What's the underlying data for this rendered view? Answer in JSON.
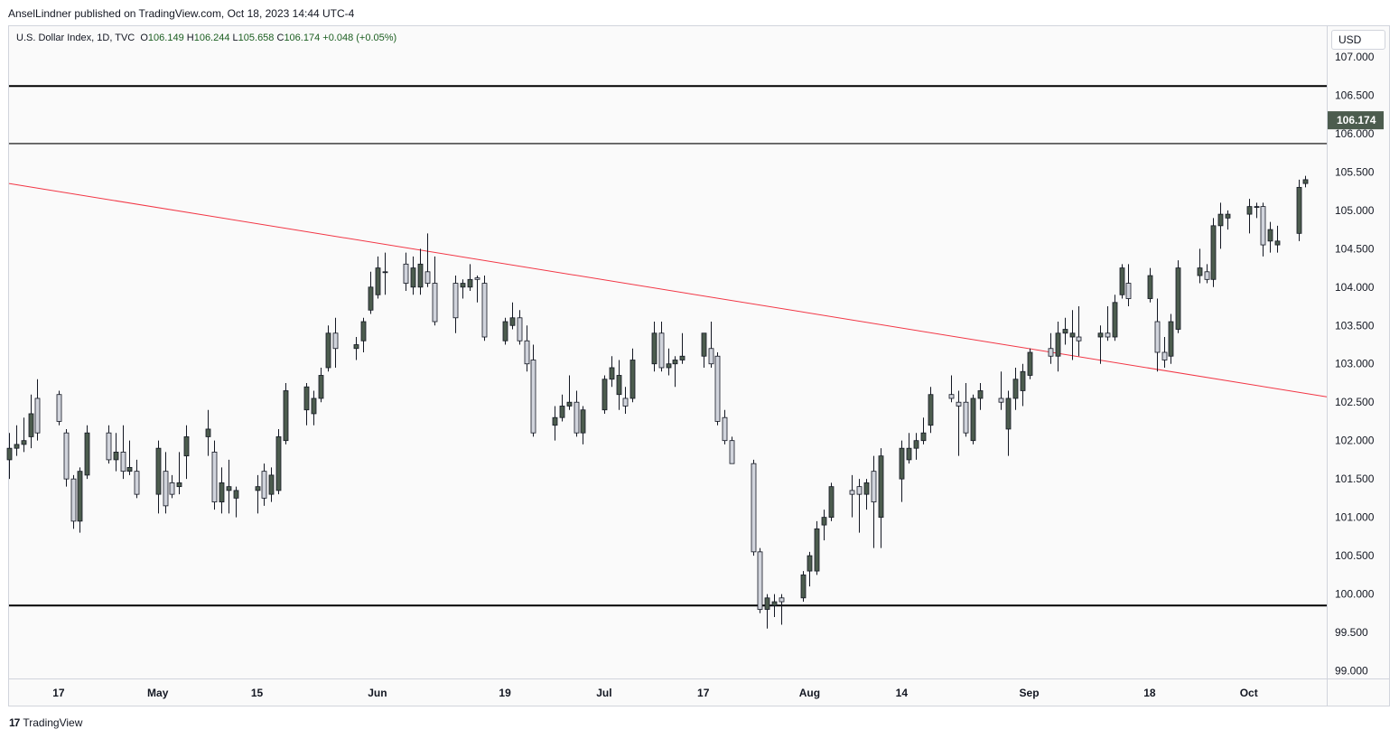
{
  "publisher_line": "AnselLindner published on TradingView.com, Oct 18, 2023 14:44 UTC-4",
  "legend": {
    "symbol": "U.S. Dollar Index, 1D, TVC",
    "open_label": "O",
    "open": "106.149",
    "high_label": "H",
    "high": "106.244",
    "low_label": "L",
    "low": "105.658",
    "close_label": "C",
    "close": "106.174",
    "change": "+0.048 (+0.05%)"
  },
  "currency": "USD",
  "last_price_label": "106.174",
  "footer": {
    "brand": "TradingView",
    "mark": "17"
  },
  "colors": {
    "up": "#4c5c4e",
    "down": "#d1d4dc",
    "wick": "#131722",
    "trendline": "#f23645",
    "level": "#000000",
    "price_tag": "#4c5c4e"
  },
  "chart_data": {
    "type": "candlestick",
    "y_axis": {
      "range": [
        98.9,
        107.4
      ],
      "ticks": [
        "99.000",
        "99.500",
        "100.000",
        "100.500",
        "101.000",
        "101.500",
        "102.000",
        "102.500",
        "103.000",
        "103.500",
        "104.000",
        "104.500",
        "105.000",
        "105.500",
        "106.000",
        "106.500",
        "107.000"
      ]
    },
    "x_axis": {
      "range": [
        "2023-04-10",
        "2023-10-13"
      ],
      "ticks": [
        {
          "label": "17",
          "date": "2023-04-17"
        },
        {
          "label": "May",
          "date": "2023-05-01"
        },
        {
          "label": "15",
          "date": "2023-05-15"
        },
        {
          "label": "Jun",
          "date": "2023-06-01"
        },
        {
          "label": "19",
          "date": "2023-06-19"
        },
        {
          "label": "Jul",
          "date": "2023-07-03"
        },
        {
          "label": "17",
          "date": "2023-07-17"
        },
        {
          "label": "Aug",
          "date": "2023-08-01"
        },
        {
          "label": "14",
          "date": "2023-08-14"
        },
        {
          "label": "Sep",
          "date": "2023-09-01"
        },
        {
          "label": "18",
          "date": "2023-09-18"
        },
        {
          "label": "Oct",
          "date": "2023-10-02"
        }
      ]
    },
    "horizontal_levels": [
      106.62,
      105.87,
      99.85
    ],
    "trendline": {
      "start": [
        "2023-04-10",
        105.35
      ],
      "end": [
        "2023-10-13",
        102.57
      ]
    },
    "last_price": 106.174,
    "candles": [
      {
        "d": "2023-04-10",
        "o": 101.75,
        "h": 102.1,
        "l": 101.5,
        "c": 101.9
      },
      {
        "d": "2023-04-11",
        "o": 101.9,
        "h": 102.2,
        "l": 101.8,
        "c": 101.95
      },
      {
        "d": "2023-04-12",
        "o": 101.95,
        "h": 102.3,
        "l": 101.85,
        "c": 102.0
      },
      {
        "d": "2023-04-13",
        "o": 102.05,
        "h": 102.6,
        "l": 101.9,
        "c": 102.35
      },
      {
        "d": "2023-04-14",
        "o": 102.55,
        "h": 102.8,
        "l": 102.0,
        "c": 102.1
      },
      {
        "d": "2023-04-17",
        "o": 102.6,
        "h": 102.65,
        "l": 102.2,
        "c": 102.25
      },
      {
        "d": "2023-04-18",
        "o": 102.1,
        "h": 102.15,
        "l": 101.4,
        "c": 101.5
      },
      {
        "d": "2023-04-19",
        "o": 101.5,
        "h": 101.55,
        "l": 100.85,
        "c": 100.95
      },
      {
        "d": "2023-04-20",
        "o": 100.95,
        "h": 101.65,
        "l": 100.8,
        "c": 101.6
      },
      {
        "d": "2023-04-21",
        "o": 101.55,
        "h": 102.2,
        "l": 101.5,
        "c": 102.1
      },
      {
        "d": "2023-04-24",
        "o": 102.1,
        "h": 102.2,
        "l": 101.7,
        "c": 101.75
      },
      {
        "d": "2023-04-25",
        "o": 101.75,
        "h": 102.1,
        "l": 101.6,
        "c": 101.85
      },
      {
        "d": "2023-04-26",
        "o": 101.85,
        "h": 102.2,
        "l": 101.5,
        "c": 101.6
      },
      {
        "d": "2023-04-27",
        "o": 101.6,
        "h": 102.0,
        "l": 101.55,
        "c": 101.65
      },
      {
        "d": "2023-04-28",
        "o": 101.6,
        "h": 101.75,
        "l": 101.25,
        "c": 101.3
      },
      {
        "d": "2023-05-01",
        "o": 101.3,
        "h": 102.0,
        "l": 101.05,
        "c": 101.9
      },
      {
        "d": "2023-05-02",
        "o": 101.6,
        "h": 101.85,
        "l": 101.05,
        "c": 101.15
      },
      {
        "d": "2023-05-03",
        "o": 101.45,
        "h": 101.55,
        "l": 101.25,
        "c": 101.3
      },
      {
        "d": "2023-05-04",
        "o": 101.4,
        "h": 101.85,
        "l": 101.3,
        "c": 101.45
      },
      {
        "d": "2023-05-05",
        "o": 101.8,
        "h": 102.2,
        "l": 101.5,
        "c": 102.05
      },
      {
        "d": "2023-05-08",
        "o": 102.05,
        "h": 102.4,
        "l": 101.8,
        "c": 102.15
      },
      {
        "d": "2023-05-09",
        "o": 101.85,
        "h": 102.0,
        "l": 101.1,
        "c": 101.2
      },
      {
        "d": "2023-05-10",
        "o": 101.2,
        "h": 101.65,
        "l": 101.05,
        "c": 101.45
      },
      {
        "d": "2023-05-11",
        "o": 101.35,
        "h": 101.75,
        "l": 101.05,
        "c": 101.4
      },
      {
        "d": "2023-05-12",
        "o": 101.25,
        "h": 101.4,
        "l": 101.0,
        "c": 101.35
      },
      {
        "d": "2023-05-15",
        "o": 101.35,
        "h": 101.55,
        "l": 101.05,
        "c": 101.4
      },
      {
        "d": "2023-05-16",
        "o": 101.6,
        "h": 101.7,
        "l": 101.15,
        "c": 101.25
      },
      {
        "d": "2023-05-17",
        "o": 101.3,
        "h": 101.65,
        "l": 101.2,
        "c": 101.55
      },
      {
        "d": "2023-05-18",
        "o": 101.35,
        "h": 102.15,
        "l": 101.3,
        "c": 102.05
      },
      {
        "d": "2023-05-19",
        "o": 102.0,
        "h": 102.75,
        "l": 101.95,
        "c": 102.65
      },
      {
        "d": "2023-05-22",
        "o": 102.4,
        "h": 102.75,
        "l": 102.2,
        "c": 102.7
      },
      {
        "d": "2023-05-23",
        "o": 102.35,
        "h": 102.65,
        "l": 102.2,
        "c": 102.55
      },
      {
        "d": "2023-05-24",
        "o": 102.55,
        "h": 102.95,
        "l": 102.5,
        "c": 102.85
      },
      {
        "d": "2023-05-25",
        "o": 102.95,
        "h": 103.5,
        "l": 102.9,
        "c": 103.4
      },
      {
        "d": "2023-05-26",
        "o": 103.4,
        "h": 103.6,
        "l": 102.95,
        "c": 103.2
      },
      {
        "d": "2023-05-29",
        "o": 103.2,
        "h": 103.35,
        "l": 103.05,
        "c": 103.25
      },
      {
        "d": "2023-05-30",
        "o": 103.3,
        "h": 103.6,
        "l": 103.15,
        "c": 103.55
      },
      {
        "d": "2023-05-31",
        "o": 103.7,
        "h": 104.2,
        "l": 103.65,
        "c": 104.0
      },
      {
        "d": "2023-06-01",
        "o": 103.9,
        "h": 104.4,
        "l": 103.85,
        "c": 104.25
      },
      {
        "d": "2023-06-02",
        "o": 104.2,
        "h": 104.45,
        "l": 103.9,
        "c": 104.2
      },
      {
        "d": "2023-06-05",
        "o": 104.3,
        "h": 104.45,
        "l": 103.95,
        "c": 104.05
      },
      {
        "d": "2023-06-06",
        "o": 104.0,
        "h": 104.4,
        "l": 103.9,
        "c": 104.25
      },
      {
        "d": "2023-06-07",
        "o": 104.0,
        "h": 104.5,
        "l": 103.9,
        "c": 104.3
      },
      {
        "d": "2023-06-08",
        "o": 104.2,
        "h": 104.7,
        "l": 104.0,
        "c": 104.05
      },
      {
        "d": "2023-06-09",
        "o": 104.05,
        "h": 104.4,
        "l": 103.5,
        "c": 103.55
      },
      {
        "d": "2023-06-12",
        "o": 104.05,
        "h": 104.15,
        "l": 103.4,
        "c": 103.6
      },
      {
        "d": "2023-06-13",
        "o": 104.0,
        "h": 104.1,
        "l": 103.85,
        "c": 104.05
      },
      {
        "d": "2023-06-14",
        "o": 104.0,
        "h": 104.3,
        "l": 103.95,
        "c": 104.1
      },
      {
        "d": "2023-06-15",
        "o": 104.12,
        "h": 104.15,
        "l": 103.8,
        "c": 104.1
      },
      {
        "d": "2023-06-16",
        "o": 104.05,
        "h": 104.15,
        "l": 103.3,
        "c": 103.35
      },
      {
        "d": "2023-06-19",
        "o": 103.3,
        "h": 103.6,
        "l": 103.25,
        "c": 103.55
      },
      {
        "d": "2023-06-20",
        "o": 103.5,
        "h": 103.8,
        "l": 103.45,
        "c": 103.6
      },
      {
        "d": "2023-06-21",
        "o": 103.6,
        "h": 103.7,
        "l": 103.25,
        "c": 103.3
      },
      {
        "d": "2023-06-22",
        "o": 103.3,
        "h": 103.5,
        "l": 102.9,
        "c": 103.0
      },
      {
        "d": "2023-06-23",
        "o": 103.05,
        "h": 103.25,
        "l": 102.05,
        "c": 102.1
      },
      {
        "d": "2023-06-26",
        "o": 102.2,
        "h": 102.45,
        "l": 102.0,
        "c": 102.3
      },
      {
        "d": "2023-06-27",
        "o": 102.3,
        "h": 102.6,
        "l": 102.25,
        "c": 102.45
      },
      {
        "d": "2023-06-28",
        "o": 102.45,
        "h": 102.85,
        "l": 102.4,
        "c": 102.5
      },
      {
        "d": "2023-06-29",
        "o": 102.5,
        "h": 102.65,
        "l": 102.05,
        "c": 102.1
      },
      {
        "d": "2023-06-30",
        "o": 102.1,
        "h": 102.45,
        "l": 101.95,
        "c": 102.4
      },
      {
        "d": "2023-07-03",
        "o": 102.4,
        "h": 102.85,
        "l": 102.35,
        "c": 102.8
      },
      {
        "d": "2023-07-04",
        "o": 102.8,
        "h": 103.1,
        "l": 102.7,
        "c": 102.95
      },
      {
        "d": "2023-07-05",
        "o": 102.6,
        "h": 103.05,
        "l": 102.4,
        "c": 102.85
      },
      {
        "d": "2023-07-06",
        "o": 102.55,
        "h": 102.7,
        "l": 102.35,
        "c": 102.45
      },
      {
        "d": "2023-07-07",
        "o": 102.55,
        "h": 103.2,
        "l": 102.5,
        "c": 103.05
      },
      {
        "d": "2023-07-10",
        "o": 103.0,
        "h": 103.55,
        "l": 102.9,
        "c": 103.4
      },
      {
        "d": "2023-07-11",
        "o": 103.4,
        "h": 103.55,
        "l": 102.9,
        "c": 102.95
      },
      {
        "d": "2023-07-12",
        "o": 102.95,
        "h": 103.2,
        "l": 102.85,
        "c": 103.0
      },
      {
        "d": "2023-07-13",
        "o": 103.0,
        "h": 103.1,
        "l": 102.7,
        "c": 103.05
      },
      {
        "d": "2023-07-14",
        "o": 103.05,
        "h": 103.4,
        "l": 103.0,
        "c": 103.1
      },
      {
        "d": "2023-07-17",
        "o": 103.1,
        "h": 103.4,
        "l": 102.95,
        "c": 103.4
      },
      {
        "d": "2023-07-18",
        "o": 103.2,
        "h": 103.55,
        "l": 102.95,
        "c": 103.0
      },
      {
        "d": "2023-07-19",
        "o": 103.1,
        "h": 103.15,
        "l": 102.2,
        "c": 102.25
      },
      {
        "d": "2023-07-20",
        "o": 102.3,
        "h": 102.4,
        "l": 101.95,
        "c": 102.0
      },
      {
        "d": "2023-07-21",
        "o": 102.0,
        "h": 102.05,
        "l": 101.7,
        "c": 101.7
      },
      {
        "d": "2023-07-24",
        "o": 101.7,
        "h": 101.75,
        "l": 100.5,
        "c": 100.55
      },
      {
        "d": "2023-07-25",
        "o": 100.55,
        "h": 100.6,
        "l": 99.75,
        "c": 99.8
      },
      {
        "d": "2023-07-26",
        "o": 99.8,
        "h": 100.0,
        "l": 99.55,
        "c": 99.95
      },
      {
        "d": "2023-07-27",
        "o": 99.85,
        "h": 100.0,
        "l": 99.7,
        "c": 99.9
      },
      {
        "d": "2023-07-28",
        "o": 99.95,
        "h": 100.0,
        "l": 99.6,
        "c": 99.9
      },
      {
        "d": "2023-07-31",
        "o": 99.95,
        "h": 100.3,
        "l": 99.9,
        "c": 100.25
      },
      {
        "d": "2023-08-01",
        "o": 100.3,
        "h": 100.55,
        "l": 100.1,
        "c": 100.5
      },
      {
        "d": "2023-08-02",
        "o": 100.3,
        "h": 100.95,
        "l": 100.25,
        "c": 100.85
      },
      {
        "d": "2023-08-03",
        "o": 100.9,
        "h": 101.1,
        "l": 100.7,
        "c": 101.0
      },
      {
        "d": "2023-08-04",
        "o": 101.0,
        "h": 101.45,
        "l": 100.95,
        "c": 101.4
      },
      {
        "d": "2023-08-07",
        "o": 101.35,
        "h": 101.55,
        "l": 101.0,
        "c": 101.3
      },
      {
        "d": "2023-08-08",
        "o": 101.4,
        "h": 101.5,
        "l": 100.8,
        "c": 101.3
      },
      {
        "d": "2023-08-09",
        "o": 101.3,
        "h": 101.5,
        "l": 101.1,
        "c": 101.45
      },
      {
        "d": "2023-08-10",
        "o": 101.6,
        "h": 101.8,
        "l": 100.6,
        "c": 101.2
      },
      {
        "d": "2023-08-11",
        "o": 101.0,
        "h": 101.9,
        "l": 100.6,
        "c": 101.8
      },
      {
        "d": "2023-08-14",
        "o": 101.5,
        "h": 102.0,
        "l": 101.2,
        "c": 101.9
      },
      {
        "d": "2023-08-15",
        "o": 101.75,
        "h": 102.1,
        "l": 101.7,
        "c": 101.9
      },
      {
        "d": "2023-08-16",
        "o": 101.9,
        "h": 102.1,
        "l": 101.75,
        "c": 102.0
      },
      {
        "d": "2023-08-17",
        "o": 102.0,
        "h": 102.3,
        "l": 101.95,
        "c": 102.1
      },
      {
        "d": "2023-08-18",
        "o": 102.2,
        "h": 102.7,
        "l": 102.1,
        "c": 102.6
      },
      {
        "d": "2023-08-21",
        "o": 102.6,
        "h": 102.85,
        "l": 102.5,
        "c": 102.55
      },
      {
        "d": "2023-08-22",
        "o": 102.5,
        "h": 102.65,
        "l": 101.8,
        "c": 102.45
      },
      {
        "d": "2023-08-23",
        "o": 102.5,
        "h": 102.75,
        "l": 102.05,
        "c": 102.1
      },
      {
        "d": "2023-08-24",
        "o": 102.0,
        "h": 102.6,
        "l": 101.95,
        "c": 102.55
      },
      {
        "d": "2023-08-25",
        "o": 102.55,
        "h": 102.75,
        "l": 102.4,
        "c": 102.65
      },
      {
        "d": "2023-08-28",
        "o": 102.55,
        "h": 102.9,
        "l": 102.4,
        "c": 102.5
      },
      {
        "d": "2023-08-29",
        "o": 102.15,
        "h": 102.65,
        "l": 101.8,
        "c": 102.55
      },
      {
        "d": "2023-08-30",
        "o": 102.55,
        "h": 102.95,
        "l": 102.4,
        "c": 102.8
      },
      {
        "d": "2023-08-31",
        "o": 102.65,
        "h": 103.0,
        "l": 102.45,
        "c": 102.9
      },
      {
        "d": "2023-09-01",
        "o": 102.85,
        "h": 103.2,
        "l": 102.8,
        "c": 103.15
      },
      {
        "d": "2023-09-04",
        "o": 103.2,
        "h": 103.4,
        "l": 103.0,
        "c": 103.1
      },
      {
        "d": "2023-09-05",
        "o": 103.1,
        "h": 103.55,
        "l": 102.9,
        "c": 103.4
      },
      {
        "d": "2023-09-06",
        "o": 103.4,
        "h": 103.6,
        "l": 103.25,
        "c": 103.45
      },
      {
        "d": "2023-09-07",
        "o": 103.35,
        "h": 103.7,
        "l": 103.05,
        "c": 103.4
      },
      {
        "d": "2023-09-08",
        "o": 103.35,
        "h": 103.75,
        "l": 103.1,
        "c": 103.3
      },
      {
        "d": "2023-09-11",
        "o": 103.35,
        "h": 103.5,
        "l": 103.0,
        "c": 103.4
      },
      {
        "d": "2023-09-12",
        "o": 103.4,
        "h": 103.75,
        "l": 103.3,
        "c": 103.35
      },
      {
        "d": "2023-09-13",
        "o": 103.35,
        "h": 103.9,
        "l": 103.3,
        "c": 103.8
      },
      {
        "d": "2023-09-14",
        "o": 103.9,
        "h": 104.3,
        "l": 103.85,
        "c": 104.25
      },
      {
        "d": "2023-09-15",
        "o": 104.05,
        "h": 104.3,
        "l": 103.75,
        "c": 103.85
      },
      {
        "d": "2023-09-18",
        "o": 103.85,
        "h": 104.25,
        "l": 103.8,
        "c": 104.15
      },
      {
        "d": "2023-09-19",
        "o": 103.55,
        "h": 103.85,
        "l": 102.9,
        "c": 103.15
      },
      {
        "d": "2023-09-20",
        "o": 103.15,
        "h": 103.35,
        "l": 102.95,
        "c": 103.05
      },
      {
        "d": "2023-09-21",
        "o": 103.1,
        "h": 103.65,
        "l": 103.0,
        "c": 103.55
      },
      {
        "d": "2023-09-22",
        "o": 103.45,
        "h": 104.35,
        "l": 103.4,
        "c": 104.25
      },
      {
        "d": "2023-09-25",
        "o": 104.15,
        "h": 104.5,
        "l": 104.05,
        "c": 104.25
      },
      {
        "d": "2023-09-26",
        "o": 104.2,
        "h": 104.3,
        "l": 104.05,
        "c": 104.1
      },
      {
        "d": "2023-09-27",
        "o": 104.1,
        "h": 104.9,
        "l": 104.0,
        "c": 104.8
      },
      {
        "d": "2023-09-28",
        "o": 104.8,
        "h": 105.1,
        "l": 104.5,
        "c": 104.95
      },
      {
        "d": "2023-09-29",
        "o": 104.9,
        "h": 105.0,
        "l": 104.75,
        "c": 104.95
      },
      {
        "d": "2023-10-02",
        "o": 104.95,
        "h": 105.15,
        "l": 104.7,
        "c": 105.05
      },
      {
        "d": "2023-10-03",
        "o": 105.05,
        "h": 105.1,
        "l": 104.9,
        "c": 105.05
      },
      {
        "d": "2023-10-04",
        "o": 105.05,
        "h": 105.1,
        "l": 104.4,
        "c": 104.55
      },
      {
        "d": "2023-10-05",
        "o": 104.6,
        "h": 104.85,
        "l": 104.45,
        "c": 104.75
      },
      {
        "d": "2023-10-06",
        "o": 104.55,
        "h": 104.8,
        "l": 104.45,
        "c": 104.6
      },
      {
        "d": "2023-10-09",
        "o": 104.7,
        "h": 105.4,
        "l": 104.6,
        "c": 105.3
      },
      {
        "d": "2023-10-10",
        "o": 105.35,
        "h": 105.45,
        "l": 105.3,
        "c": 105.4
      }
    ]
  }
}
